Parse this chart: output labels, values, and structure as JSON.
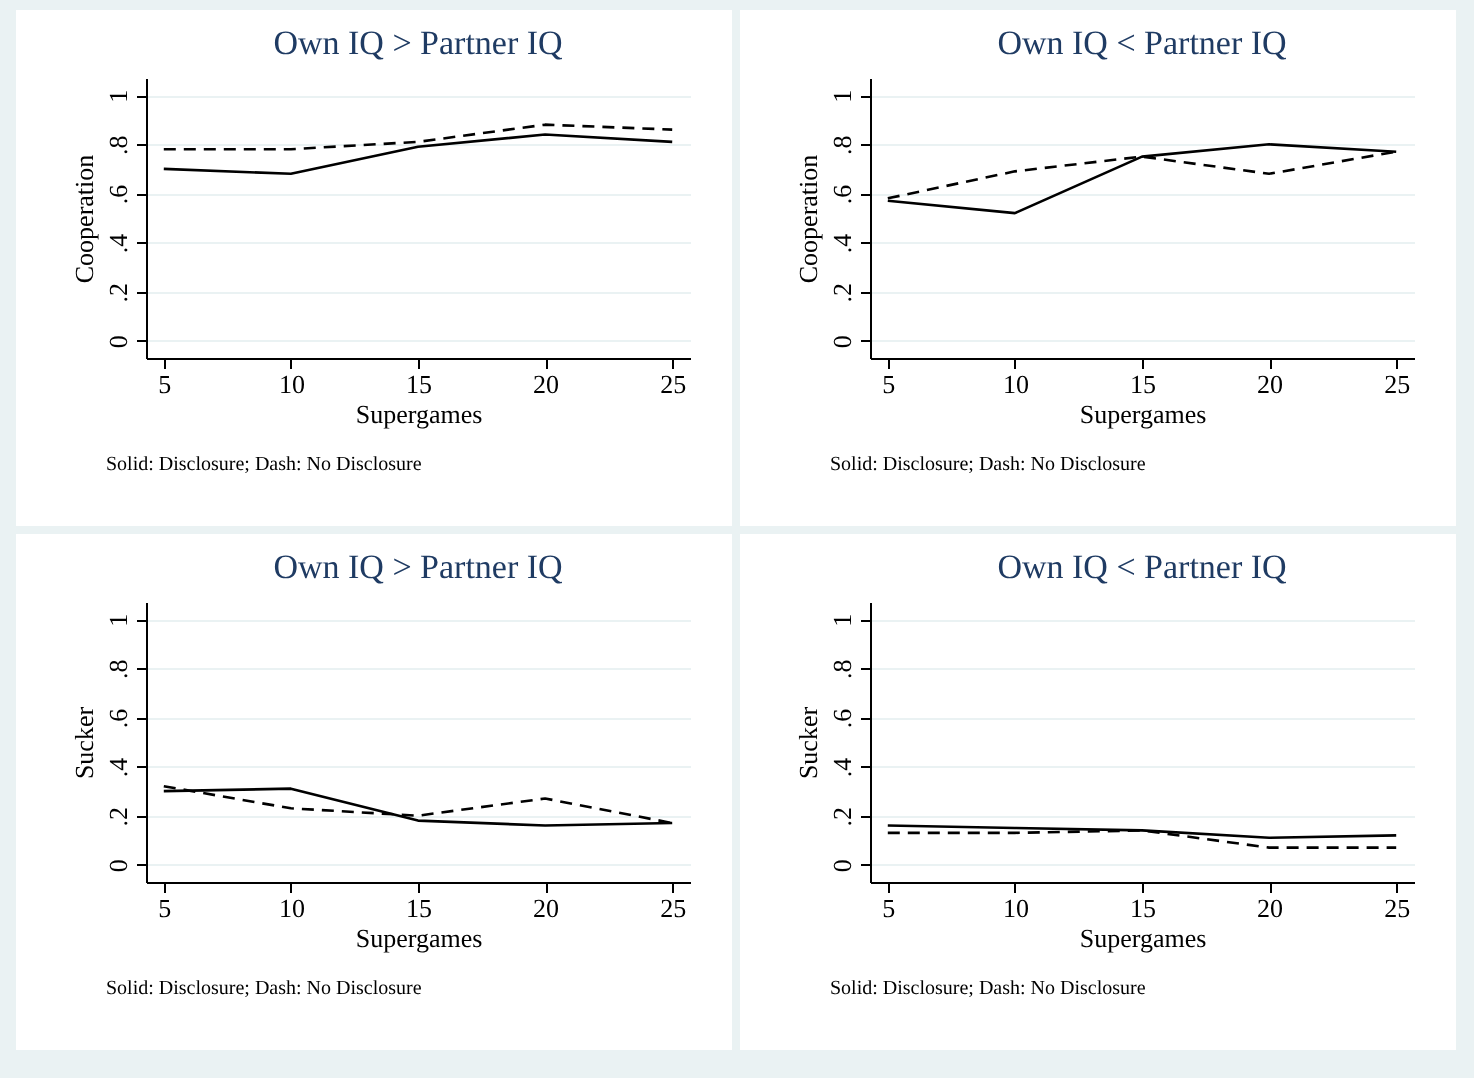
{
  "chart_data": [
    {
      "type": "line",
      "title": "Own IQ > Partner IQ",
      "xlabel": "Supergames",
      "ylabel": "Cooperation",
      "x": [
        5,
        10,
        15,
        20,
        25
      ],
      "xlim": [
        4.3,
        25.7
      ],
      "xticks": [
        5,
        10,
        15,
        20,
        25
      ],
      "ylim": [
        -0.07,
        1.07
      ],
      "yticks": [
        {
          "value": 0,
          "label": "0"
        },
        {
          "value": 0.2,
          "label": ".2"
        },
        {
          "value": 0.4,
          "label": ".4"
        },
        {
          "value": 0.6,
          "label": ".6"
        },
        {
          "value": 0.8,
          "label": ".8"
        },
        {
          "value": 1,
          "label": "1"
        }
      ],
      "grid": "y",
      "annotations": [
        "Solid: Disclosure; Dash: No Disclosure"
      ],
      "series": [
        {
          "color": "#000000",
          "line_style": "solid",
          "values": [
            0.7,
            0.68,
            0.79,
            0.84,
            0.81
          ]
        },
        {
          "color": "#000000",
          "line_style": "dashed",
          "values": [
            0.78,
            0.78,
            0.81,
            0.88,
            0.86
          ]
        }
      ]
    },
    {
      "type": "line",
      "title": "Own IQ < Partner IQ",
      "xlabel": "Supergames",
      "ylabel": "Cooperation",
      "x": [
        5,
        10,
        15,
        20,
        25
      ],
      "xlim": [
        4.3,
        25.7
      ],
      "xticks": [
        5,
        10,
        15,
        20,
        25
      ],
      "ylim": [
        -0.07,
        1.07
      ],
      "yticks": [
        {
          "value": 0,
          "label": "0"
        },
        {
          "value": 0.2,
          "label": ".2"
        },
        {
          "value": 0.4,
          "label": ".4"
        },
        {
          "value": 0.6,
          "label": ".6"
        },
        {
          "value": 0.8,
          "label": ".8"
        },
        {
          "value": 1,
          "label": "1"
        }
      ],
      "grid": "y",
      "annotations": [
        "Solid: Disclosure; Dash: No Disclosure"
      ],
      "series": [
        {
          "color": "#000000",
          "line_style": "solid",
          "values": [
            0.57,
            0.52,
            0.75,
            0.8,
            0.77
          ]
        },
        {
          "color": "#000000",
          "line_style": "dashed",
          "values": [
            0.58,
            0.69,
            0.75,
            0.68,
            0.77
          ]
        }
      ]
    },
    {
      "type": "line",
      "title": "Own IQ > Partner IQ",
      "xlabel": "Supergames",
      "ylabel": "Sucker",
      "x": [
        5,
        10,
        15,
        20,
        25
      ],
      "xlim": [
        4.3,
        25.7
      ],
      "xticks": [
        5,
        10,
        15,
        20,
        25
      ],
      "ylim": [
        -0.07,
        1.07
      ],
      "yticks": [
        {
          "value": 0,
          "label": "0"
        },
        {
          "value": 0.2,
          "label": ".2"
        },
        {
          "value": 0.4,
          "label": ".4"
        },
        {
          "value": 0.6,
          "label": ".6"
        },
        {
          "value": 0.8,
          "label": ".8"
        },
        {
          "value": 1,
          "label": "1"
        }
      ],
      "grid": "y",
      "annotations": [
        "Solid: Disclosure; Dash: No Disclosure"
      ],
      "series": [
        {
          "color": "#000000",
          "line_style": "solid",
          "values": [
            0.3,
            0.31,
            0.18,
            0.16,
            0.17
          ]
        },
        {
          "color": "#000000",
          "line_style": "dashed",
          "values": [
            0.32,
            0.23,
            0.2,
            0.27,
            0.17
          ]
        }
      ]
    },
    {
      "type": "line",
      "title": "Own IQ < Partner IQ",
      "xlabel": "Supergames",
      "ylabel": "Sucker",
      "x": [
        5,
        10,
        15,
        20,
        25
      ],
      "xlim": [
        4.3,
        25.7
      ],
      "xticks": [
        5,
        10,
        15,
        20,
        25
      ],
      "ylim": [
        -0.07,
        1.07
      ],
      "yticks": [
        {
          "value": 0,
          "label": "0"
        },
        {
          "value": 0.2,
          "label": ".2"
        },
        {
          "value": 0.4,
          "label": ".4"
        },
        {
          "value": 0.6,
          "label": ".6"
        },
        {
          "value": 0.8,
          "label": ".8"
        },
        {
          "value": 1,
          "label": "1"
        }
      ],
      "grid": "y",
      "annotations": [
        "Solid: Disclosure; Dash: No Disclosure"
      ],
      "series": [
        {
          "color": "#000000",
          "line_style": "solid",
          "values": [
            0.16,
            0.15,
            0.14,
            0.11,
            0.12
          ]
        },
        {
          "color": "#000000",
          "line_style": "dashed",
          "values": [
            0.13,
            0.13,
            0.14,
            0.07,
            0.07
          ]
        }
      ]
    }
  ]
}
